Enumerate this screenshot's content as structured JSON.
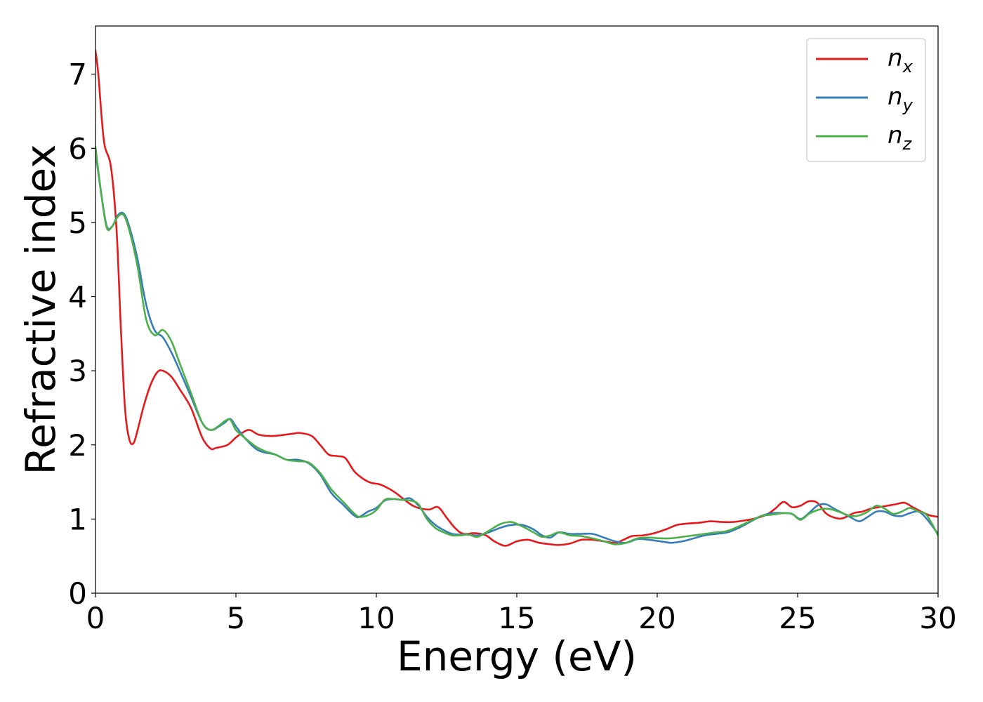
{
  "chart_data": {
    "type": "line",
    "title": "",
    "xlabel": "Energy (eV)",
    "ylabel": "Refractive index",
    "xlim": [
      0,
      30
    ],
    "ylim": [
      0,
      7.65
    ],
    "xticks": [
      0,
      5,
      10,
      15,
      20,
      25,
      30
    ],
    "yticks": [
      0,
      1,
      2,
      3,
      4,
      5,
      6,
      7
    ],
    "grid": false,
    "legend": {
      "position": "top-right",
      "entries": [
        {
          "base": "n",
          "sub": "x",
          "color": "#e41a1c"
        },
        {
          "base": "n",
          "sub": "y",
          "color": "#377eb8"
        },
        {
          "base": "n",
          "sub": "z",
          "color": "#4daf4a"
        }
      ]
    },
    "series": [
      {
        "name": "n_x",
        "color": "#e41a1c",
        "x": [
          0,
          0.1,
          0.3,
          0.55,
          0.75,
          0.9,
          1.05,
          1.2,
          1.35,
          1.5,
          1.7,
          1.95,
          2.2,
          2.4,
          2.7,
          3.0,
          3.4,
          3.8,
          4.1,
          4.3,
          4.7,
          5.0,
          5.3,
          5.5,
          5.8,
          6.2,
          6.6,
          7.0,
          7.3,
          7.7,
          8.0,
          8.3,
          8.6,
          8.9,
          9.2,
          9.5,
          9.8,
          10.1,
          10.4,
          10.7,
          11.0,
          11.3,
          11.6,
          11.9,
          12.2,
          12.5,
          12.8,
          13.1,
          13.5,
          13.9,
          14.2,
          14.6,
          15.0,
          15.4,
          15.8,
          16.2,
          16.5,
          16.9,
          17.3,
          17.7,
          18.1,
          18.5,
          18.8,
          19.1,
          19.5,
          19.9,
          20.3,
          20.7,
          21.1,
          21.5,
          21.9,
          22.3,
          22.7,
          23.1,
          23.5,
          23.9,
          24.2,
          24.5,
          24.8,
          25.1,
          25.4,
          25.7,
          26.0,
          26.3,
          26.6,
          27.0,
          27.3,
          27.6,
          27.9,
          28.2,
          28.5,
          28.8,
          29.1,
          29.4,
          29.7,
          30.0
        ],
        "y": [
          7.32,
          7.0,
          6.1,
          5.75,
          4.9,
          3.6,
          2.5,
          2.08,
          2.02,
          2.2,
          2.5,
          2.8,
          2.98,
          3.0,
          2.92,
          2.75,
          2.5,
          2.1,
          1.95,
          1.96,
          2.0,
          2.1,
          2.18,
          2.2,
          2.14,
          2.12,
          2.13,
          2.15,
          2.16,
          2.12,
          2.0,
          1.87,
          1.85,
          1.82,
          1.65,
          1.55,
          1.49,
          1.47,
          1.42,
          1.35,
          1.26,
          1.18,
          1.14,
          1.13,
          1.16,
          1.02,
          0.88,
          0.8,
          0.81,
          0.78,
          0.7,
          0.64,
          0.7,
          0.72,
          0.68,
          0.66,
          0.65,
          0.67,
          0.72,
          0.72,
          0.7,
          0.68,
          0.72,
          0.77,
          0.78,
          0.81,
          0.86,
          0.92,
          0.94,
          0.95,
          0.97,
          0.96,
          0.96,
          0.98,
          1.01,
          1.06,
          1.14,
          1.23,
          1.16,
          1.18,
          1.24,
          1.22,
          1.08,
          1.02,
          1.01,
          1.08,
          1.1,
          1.14,
          1.16,
          1.18,
          1.2,
          1.22,
          1.16,
          1.1,
          1.05,
          1.03
        ]
      },
      {
        "name": "n_y",
        "color": "#377eb8",
        "x": [
          0,
          0.2,
          0.4,
          0.6,
          0.8,
          1.0,
          1.2,
          1.5,
          1.8,
          2.1,
          2.4,
          2.7,
          3.0,
          3.4,
          3.8,
          4.1,
          4.4,
          4.6,
          4.8,
          5.0,
          5.3,
          5.7,
          6.0,
          6.4,
          6.8,
          7.2,
          7.6,
          8.0,
          8.4,
          8.8,
          9.2,
          9.4,
          9.7,
          10.0,
          10.3,
          10.6,
          10.9,
          11.2,
          11.5,
          11.8,
          12.1,
          12.4,
          12.7,
          13.0,
          13.3,
          13.6,
          14.0,
          14.4,
          14.8,
          15.2,
          15.6,
          15.9,
          16.2,
          16.5,
          16.9,
          17.3,
          17.7,
          18.1,
          18.5,
          18.9,
          19.3,
          19.7,
          20.1,
          20.5,
          20.9,
          21.3,
          21.7,
          22.1,
          22.5,
          22.9,
          23.3,
          23.7,
          24.1,
          24.5,
          24.8,
          25.1,
          25.4,
          25.7,
          26.0,
          26.3,
          26.6,
          26.9,
          27.2,
          27.5,
          27.8,
          28.1,
          28.4,
          28.7,
          29.0,
          29.3,
          29.6,
          30.0
        ],
        "y": [
          5.95,
          5.4,
          4.95,
          4.95,
          5.1,
          5.12,
          4.95,
          4.5,
          3.9,
          3.55,
          3.45,
          3.25,
          3.0,
          2.65,
          2.3,
          2.2,
          2.25,
          2.3,
          2.35,
          2.25,
          2.1,
          1.95,
          1.9,
          1.87,
          1.8,
          1.8,
          1.75,
          1.6,
          1.35,
          1.2,
          1.05,
          1.03,
          1.1,
          1.15,
          1.25,
          1.27,
          1.26,
          1.28,
          1.18,
          1.03,
          0.92,
          0.85,
          0.8,
          0.79,
          0.79,
          0.78,
          0.82,
          0.88,
          0.92,
          0.92,
          0.86,
          0.78,
          0.75,
          0.82,
          0.8,
          0.8,
          0.8,
          0.75,
          0.7,
          0.68,
          0.73,
          0.72,
          0.7,
          0.68,
          0.7,
          0.74,
          0.78,
          0.8,
          0.82,
          0.88,
          0.96,
          1.04,
          1.08,
          1.08,
          1.07,
          1.0,
          1.08,
          1.18,
          1.2,
          1.14,
          1.08,
          1.02,
          0.97,
          1.03,
          1.1,
          1.1,
          1.05,
          1.04,
          1.08,
          1.1,
          1.0,
          0.8
        ]
      },
      {
        "name": "n_z",
        "color": "#4daf4a",
        "x": [
          0,
          0.2,
          0.4,
          0.6,
          0.8,
          1.0,
          1.2,
          1.5,
          1.8,
          2.1,
          2.4,
          2.7,
          3.0,
          3.4,
          3.8,
          4.1,
          4.4,
          4.6,
          4.8,
          5.0,
          5.3,
          5.7,
          6.0,
          6.4,
          6.8,
          7.2,
          7.6,
          8.0,
          8.4,
          8.8,
          9.2,
          9.4,
          9.7,
          10.0,
          10.3,
          10.6,
          10.9,
          11.2,
          11.5,
          11.8,
          12.1,
          12.4,
          12.7,
          13.0,
          13.3,
          13.6,
          14.0,
          14.4,
          14.8,
          15.2,
          15.6,
          15.9,
          16.2,
          16.5,
          16.9,
          17.3,
          17.7,
          18.1,
          18.5,
          18.9,
          19.3,
          19.7,
          20.1,
          20.5,
          20.9,
          21.3,
          21.7,
          22.1,
          22.5,
          22.9,
          23.3,
          23.7,
          24.1,
          24.5,
          24.8,
          25.1,
          25.4,
          25.7,
          26.0,
          26.3,
          26.6,
          26.9,
          27.2,
          27.5,
          27.8,
          28.1,
          28.4,
          28.7,
          29.0,
          29.3,
          29.6,
          30.0
        ],
        "y": [
          6.02,
          5.4,
          4.93,
          4.95,
          5.08,
          5.1,
          4.9,
          4.4,
          3.7,
          3.48,
          3.55,
          3.4,
          3.1,
          2.7,
          2.3,
          2.2,
          2.26,
          2.32,
          2.34,
          2.2,
          2.1,
          1.98,
          1.92,
          1.87,
          1.8,
          1.78,
          1.76,
          1.62,
          1.4,
          1.24,
          1.08,
          1.03,
          1.05,
          1.12,
          1.26,
          1.27,
          1.26,
          1.25,
          1.2,
          1.0,
          0.88,
          0.82,
          0.78,
          0.78,
          0.79,
          0.76,
          0.84,
          0.93,
          0.96,
          0.9,
          0.82,
          0.76,
          0.78,
          0.82,
          0.78,
          0.77,
          0.74,
          0.7,
          0.66,
          0.68,
          0.74,
          0.75,
          0.74,
          0.74,
          0.76,
          0.78,
          0.8,
          0.82,
          0.84,
          0.9,
          0.97,
          1.04,
          1.06,
          1.08,
          1.07,
          0.99,
          1.07,
          1.12,
          1.14,
          1.12,
          1.08,
          1.04,
          1.05,
          1.1,
          1.18,
          1.14,
          1.07,
          1.1,
          1.15,
          1.1,
          1.05,
          0.78
        ]
      }
    ]
  }
}
